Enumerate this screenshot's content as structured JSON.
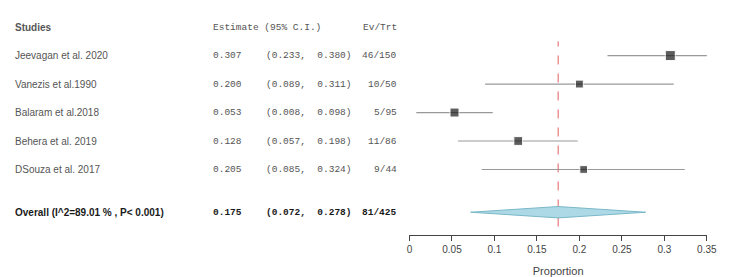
{
  "chart_data": {
    "type": "forest",
    "xlabel": "Proportion",
    "xlim": [
      0,
      0.35
    ],
    "xticks": [
      0,
      0.05,
      0.1,
      0.15,
      0.2,
      0.25,
      0.3,
      0.35
    ],
    "grid": false,
    "columns": [
      "Studies",
      "Estimate (95% C.I.)",
      "Ev/Trt"
    ],
    "categories": [
      "Jeevagan et al. 2020",
      "Vanezis et al.1990",
      "Balaram et al.2018",
      "Behera et al. 2019",
      "DSouza et al. 2017"
    ],
    "values": [
      0.307,
      0.2,
      0.053,
      0.128,
      0.205
    ],
    "value_labels": [
      "0.307",
      "0.200",
      "0.053",
      "0.128",
      "0.205"
    ],
    "ci_low": [
      0.233,
      0.089,
      0.008,
      0.057,
      0.085
    ],
    "ci_high": [
      0.38,
      0.311,
      0.098,
      0.198,
      0.324
    ],
    "ci_labels": [
      "(0.233,  0.380)",
      "(0.089,  0.311)",
      "(0.008,  0.098)",
      "(0.057,  0.198)",
      "(0.085,  0.324)"
    ],
    "ev_trt": [
      "46/150",
      "10/50",
      "5/95",
      "11/86",
      "9/44"
    ],
    "n": [
      150,
      50,
      95,
      86,
      44
    ],
    "color": "#1a1a1a",
    "ci_color": "#999999",
    "overall": {
      "label": "Overall (I^2=89.01 % , P< 0.001)",
      "value": 0.175,
      "value_label": "0.175",
      "ci_low": 0.072,
      "ci_high": 0.278,
      "ci_label": "(0.072,  0.278)",
      "ev_trt": "81/425",
      "color": "#add8e6",
      "edge_color": "#7ab8c8"
    },
    "ref_line": 0.175,
    "ref_line_color": "#e06060"
  }
}
